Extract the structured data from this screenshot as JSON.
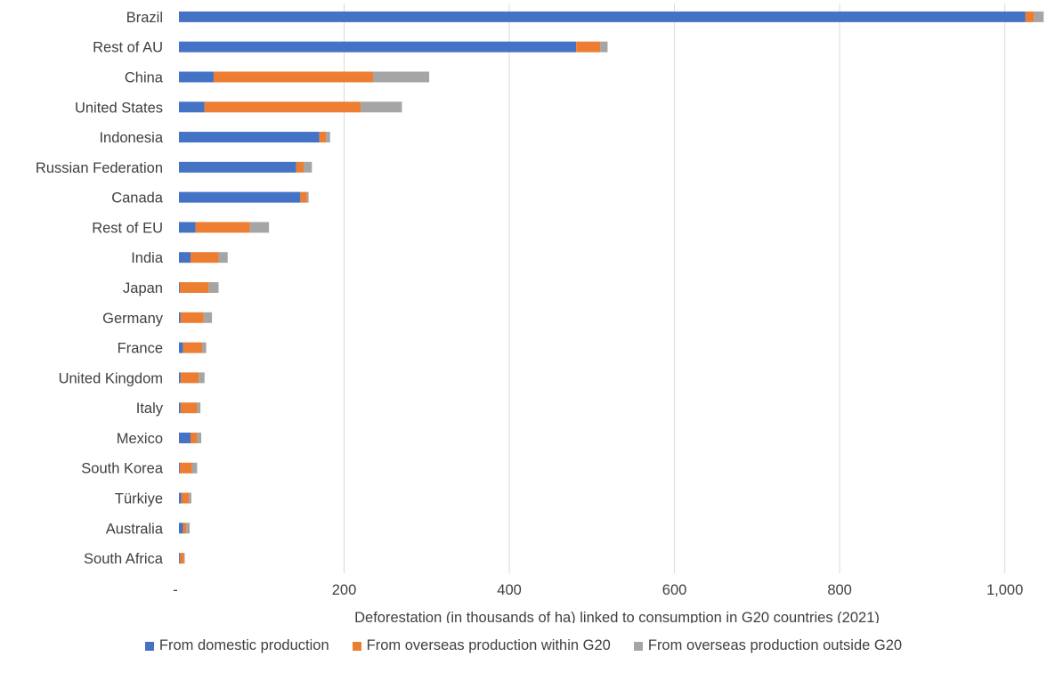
{
  "chart_data": {
    "type": "bar",
    "orientation": "horizontal",
    "stacked": true,
    "categories": [
      "Brazil",
      "Rest of AU",
      "China",
      "United States",
      "Indonesia",
      "Russian Federation",
      "Canada",
      "Rest of EU",
      "India",
      "Japan",
      "Germany",
      "France",
      "United Kingdom",
      "Italy",
      "Mexico",
      "South Korea",
      "Türkiye",
      "Australia",
      "South Africa"
    ],
    "series": [
      {
        "name": "From domestic production",
        "color": "#4472C4",
        "values": [
          1025,
          481,
          42,
          31,
          170,
          142,
          147,
          20,
          14,
          1,
          2,
          5,
          2,
          2,
          14,
          1,
          3,
          5,
          1
        ]
      },
      {
        "name": "From overseas production within G20",
        "color": "#ED7D31",
        "values": [
          10,
          29,
          193,
          189,
          8,
          9,
          8,
          66,
          34,
          35,
          28,
          23,
          22,
          20,
          8,
          15,
          9,
          4,
          5
        ]
      },
      {
        "name": "From overseas production outside G20",
        "color": "#A5A5A5",
        "values": [
          12,
          9,
          68,
          50,
          5,
          10,
          2,
          23,
          11,
          12,
          10,
          5,
          7,
          4,
          5,
          6,
          3,
          4,
          1
        ]
      }
    ],
    "xlim": [
      0,
      1050
    ],
    "x_ticks": [
      0,
      200,
      400,
      600,
      800,
      1000
    ],
    "x_tick_labels": [
      "-",
      "200",
      "400",
      "600",
      "800",
      "1,000"
    ],
    "xlabel": "Deforestation (in thousands of ha) linked to consumption in G20 countries (2021)",
    "ylabel": "",
    "title": "",
    "grid": "vertical",
    "legend_position": "bottom"
  }
}
